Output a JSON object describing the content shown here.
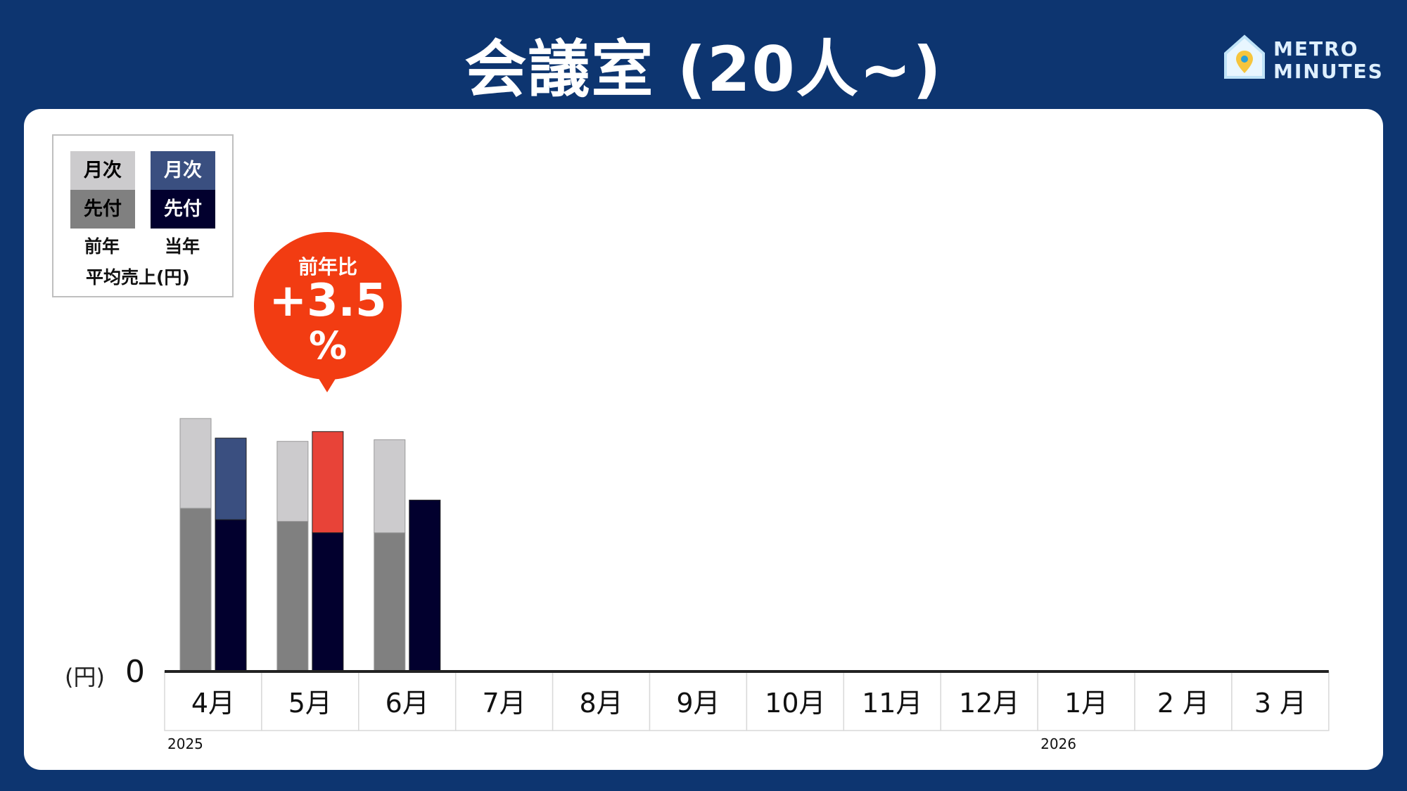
{
  "header": {
    "title": "会議室 (20人~)"
  },
  "logo": {
    "line1": "METRO",
    "line2": "MINUTES",
    "icon": "house-map-pin-icon"
  },
  "legend": {
    "swatch_top_label": "月次",
    "swatch_bottom_label": "先付",
    "prev_year_label": "前年",
    "curr_year_label": "当年",
    "caption": "平均売上(円)",
    "colors": {
      "prev_monthly": "#cccbcd",
      "prev_advance": "#808080",
      "curr_monthly": "#3a4f80",
      "curr_advance": "#02002e",
      "highlight_monthly": "#e84338"
    }
  },
  "callout": {
    "label": "前年比",
    "value": "+3.5",
    "unit": "%",
    "color": "#f23c12"
  },
  "axis": {
    "y_unit": "(円)",
    "y_zero": "0",
    "year_start": "2025",
    "year_next": "2026"
  },
  "chart_data": {
    "type": "bar",
    "stacked": true,
    "categories": [
      "4月",
      "5月",
      "6月",
      "7月",
      "8月",
      "9月",
      "10月",
      "11月",
      "12月",
      "1月",
      "2 月",
      "3 月"
    ],
    "series": [
      {
        "name": "前年 先付",
        "group": "前年",
        "values": [
          100,
          92,
          85,
          null,
          null,
          null,
          null,
          null,
          null,
          null,
          null,
          null
        ]
      },
      {
        "name": "前年 月次",
        "group": "前年",
        "values": [
          55,
          49,
          57,
          null,
          null,
          null,
          null,
          null,
          null,
          null,
          null,
          null
        ]
      },
      {
        "name": "当年 先付",
        "group": "当年",
        "values": [
          93,
          85,
          105,
          null,
          null,
          null,
          null,
          null,
          null,
          null,
          null,
          null
        ]
      },
      {
        "name": "当年 月次",
        "group": "当年",
        "values": [
          50,
          62,
          0,
          null,
          null,
          null,
          null,
          null,
          null,
          null,
          null,
          null
        ]
      }
    ],
    "highlight": {
      "category": "5月",
      "series": "当年 月次"
    },
    "ylim": [
      0,
      165
    ],
    "xlabel": "",
    "ylabel": "(円)"
  }
}
